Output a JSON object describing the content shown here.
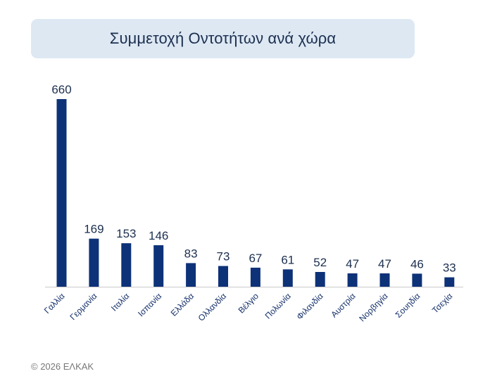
{
  "chart_data": {
    "type": "bar",
    "title": "Συμμετοχή Οντοτήτων ανά χώρα",
    "categories": [
      "Γαλλία",
      "Γερμανία",
      "Ιταλία",
      "Ισπανία",
      "Ελλάδα",
      "Ολλανδία",
      "Βέλγιο",
      "Πολωνία",
      "Φιλανδία",
      "Αυστρία",
      "Νορβηγία",
      "Σουηδία",
      "Τσεχία"
    ],
    "values": [
      660,
      169,
      153,
      146,
      83,
      73,
      67,
      61,
      52,
      47,
      47,
      46,
      33
    ],
    "value_labels": [
      "660",
      "169",
      "153",
      "146",
      "83",
      "73",
      "67",
      "61",
      "52",
      "47",
      "47",
      "46",
      "33"
    ],
    "xlabel": "",
    "ylabel": "",
    "ylim": [
      0,
      660
    ],
    "grid": false,
    "data_labels": true,
    "bar_color": "#0d3278"
  },
  "footer": "© 2026 ΕΛΚΑΚ"
}
